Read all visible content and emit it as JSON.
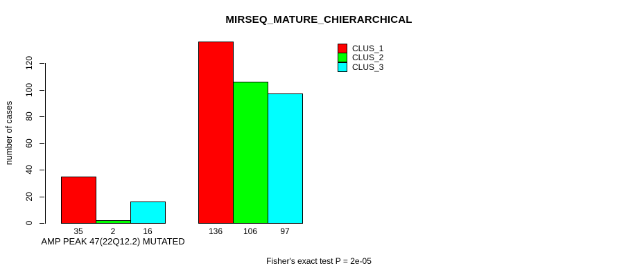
{
  "chart_data": {
    "type": "bar",
    "title": "MIRSEQ_MATURE_CHIERARCHICAL",
    "ylabel": "number of cases",
    "xlabel": "",
    "yticks": [
      0,
      20,
      40,
      60,
      80,
      100,
      120
    ],
    "ylim": [
      0,
      137
    ],
    "grid": false,
    "legend_position": "top-right",
    "series": [
      {
        "name": "CLUS_1",
        "color": "#FF0000"
      },
      {
        "name": "CLUS_2",
        "color": "#00FF00"
      },
      {
        "name": "CLUS_3",
        "color": "#00FFFF"
      }
    ],
    "groups": [
      {
        "label": "AMP PEAK 47(22Q12.2) MUTATED",
        "values": [
          35,
          2,
          16
        ]
      },
      {
        "label": "",
        "values": [
          136,
          106,
          97
        ]
      }
    ],
    "annotation": "Fisher's exact test P = 2e-05"
  }
}
